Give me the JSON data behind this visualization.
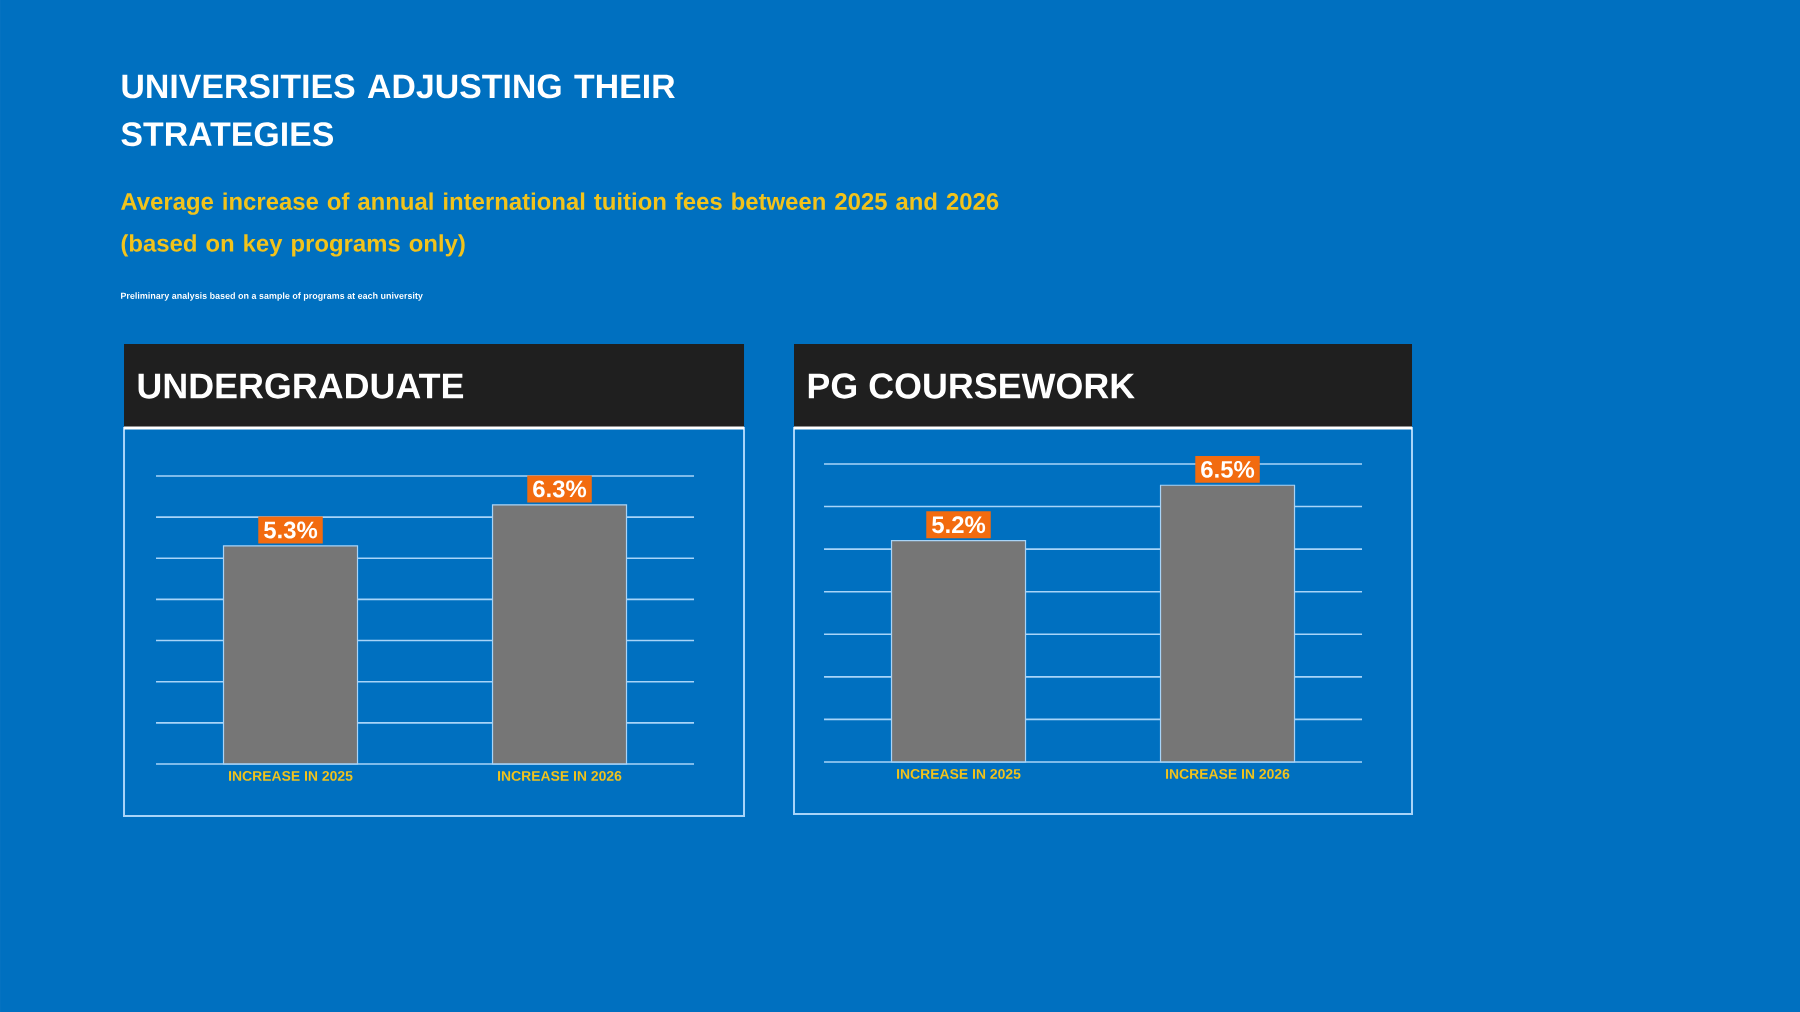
{
  "chart_data": [
    {
      "type": "other",
      "title": "UNIVERSITIES ADJUSTING THEIR STRATEGIES",
      "subtitle": "Average increase of annual international tuition fees between 2025 and 2026 (based on key programs only)",
      "annotations": [
        "Preliminary analysis based on a sample of programs at each university"
      ]
    },
    {
      "type": "bar",
      "title": "UNDERGRADUATE",
      "categories": [
        "INCREASE IN 2025",
        "INCREASE IN 2026"
      ],
      "values": [
        5.3,
        6.3
      ],
      "value_labels": [
        "5.3%",
        "6.3%"
      ],
      "color": "#767676",
      "ylim": [
        0,
        7
      ],
      "yticks": [
        {
          "value": 1,
          "label": null
        },
        {
          "value": 2,
          "label": null
        },
        {
          "value": 3,
          "label": null
        },
        {
          "value": 4,
          "label": null
        },
        {
          "value": 5,
          "label": null
        },
        {
          "value": 6,
          "label": null
        },
        {
          "value": 7,
          "label": null
        }
      ],
      "grid": "y",
      "tick_labels": "x"
    },
    {
      "type": "bar",
      "title": "PG COURSEWORK",
      "categories": [
        "INCREASE IN 2025",
        "INCREASE IN 2026"
      ],
      "values": [
        5.2,
        6.5
      ],
      "value_labels": [
        "5.2%",
        "6.5%"
      ],
      "color": "#767676",
      "ylim": [
        0,
        7
      ],
      "yticks": [
        {
          "value": 1,
          "label": null
        },
        {
          "value": 2,
          "label": null
        },
        {
          "value": 3,
          "label": null
        },
        {
          "value": 4,
          "label": null
        },
        {
          "value": 5,
          "label": null
        },
        {
          "value": 6,
          "label": null
        },
        {
          "value": 7,
          "label": null
        }
      ],
      "grid": "y",
      "tick_labels": "x"
    }
  ]
}
